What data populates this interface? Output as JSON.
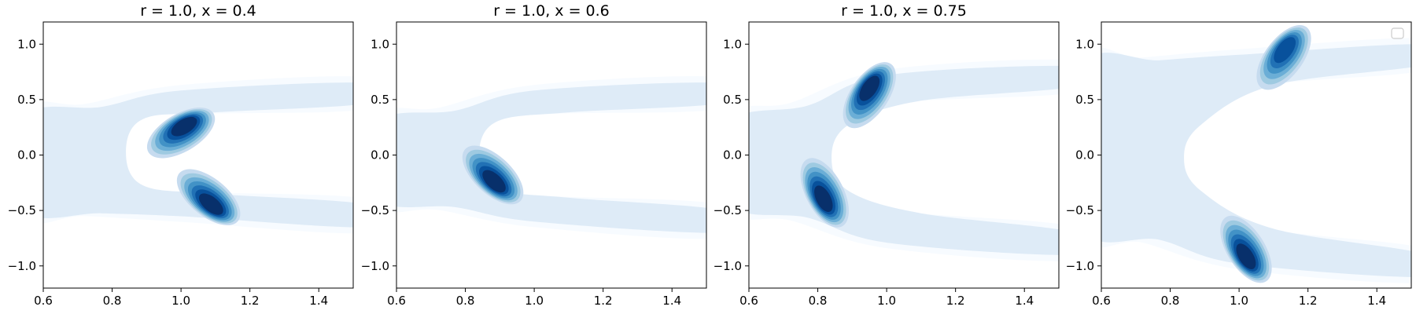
{
  "figure": {
    "type": "grid of filled density contour plots",
    "colormap": "Blues",
    "colormap_stops": [
      "#f7fbff",
      "#deebf7",
      "#c6dbef",
      "#9ecae1",
      "#6baed6",
      "#4292c6",
      "#2171b5",
      "#08519c",
      "#08306b"
    ],
    "background": "#ffffff",
    "axes_color": "#000000"
  },
  "chart_data": [
    {
      "type": "heatmap",
      "subtype": "filled-kde-contour",
      "title": "r = 1.0, x = 0.4",
      "xlim": [
        0.6,
        1.5
      ],
      "ylim": [
        -1.2,
        1.2
      ],
      "xticks": [
        0.6,
        0.8,
        1.0,
        1.2,
        1.4
      ],
      "xtick_labels": [
        "0.6",
        "0.8",
        "1.0",
        "1.2",
        "1.4"
      ],
      "yticks": [
        -1.0,
        -0.5,
        0.0,
        0.5,
        1.0
      ],
      "ytick_labels": [
        "−1.0",
        "−0.5",
        "0.0",
        "0.5",
        "1.0"
      ],
      "grid": false,
      "legend": null,
      "shape": "C-shaped band open to the right",
      "background_band": {
        "y_range_at_left": [
          -0.55,
          0.4
        ],
        "upper_arm_y_at_right": 0.6,
        "lower_arm_y_at_right": -0.55
      },
      "density_peaks": [
        {
          "x": 1.0,
          "y": 0.2,
          "relative_density": 1.0
        },
        {
          "x": 1.08,
          "y": -0.38,
          "relative_density": 0.95
        }
      ]
    },
    {
      "type": "heatmap",
      "subtype": "filled-kde-contour",
      "title": "r = 1.0, x = 0.6",
      "xlim": [
        0.6,
        1.5
      ],
      "ylim": [
        -1.2,
        1.2
      ],
      "xticks": [
        0.6,
        0.8,
        1.0,
        1.2,
        1.4
      ],
      "xtick_labels": [
        "0.6",
        "0.8",
        "1.0",
        "1.2",
        "1.4"
      ],
      "yticks": [
        -1.0,
        -0.5,
        0.0,
        0.5,
        1.0
      ],
      "ytick_labels": [
        "−1.0",
        "−0.5",
        "0.0",
        "0.5",
        "1.0"
      ],
      "grid": false,
      "legend": null,
      "shape": "C-shaped band open to the right",
      "background_band": {
        "y_range_at_left": [
          -0.45,
          0.35
        ],
        "upper_arm_y_at_right": 0.6,
        "lower_arm_y_at_right": -0.6
      },
      "density_peaks": [
        {
          "x": 0.88,
          "y": -0.18,
          "relative_density": 1.0
        }
      ]
    },
    {
      "type": "heatmap",
      "subtype": "filled-kde-contour",
      "title": "r = 1.0, x = 0.75",
      "xlim": [
        0.6,
        1.5
      ],
      "ylim": [
        -1.2,
        1.2
      ],
      "xticks": [
        0.6,
        0.8,
        1.0,
        1.2,
        1.4
      ],
      "xtick_labels": [
        "0.6",
        "0.8",
        "1.0",
        "1.2",
        "1.4"
      ],
      "yticks": [
        -1.0,
        -0.5,
        0.0,
        0.5,
        1.0
      ],
      "ytick_labels": [
        "−1.0",
        "−0.5",
        "0.0",
        "0.5",
        "1.0"
      ],
      "grid": false,
      "legend": null,
      "shape": "C-shaped band open to the right",
      "background_band": {
        "y_range_at_left": [
          -0.5,
          0.35
        ],
        "upper_arm_y_at_right": 0.75,
        "lower_arm_y_at_right": -0.8
      },
      "density_peaks": [
        {
          "x": 0.95,
          "y": 0.54,
          "relative_density": 1.0
        },
        {
          "x": 0.82,
          "y": -0.34,
          "relative_density": 0.95
        }
      ]
    },
    {
      "type": "heatmap",
      "subtype": "filled-kde-contour",
      "title": "",
      "xlim": [
        0.6,
        1.5
      ],
      "ylim": [
        -1.2,
        1.2
      ],
      "xticks": [
        0.6,
        0.8,
        1.0,
        1.2,
        1.4
      ],
      "xtick_labels": [
        "0.6",
        "0.8",
        "1.0",
        "1.2",
        "1.4"
      ],
      "yticks": [
        -1.0,
        -0.5,
        0.0,
        0.5,
        1.0
      ],
      "ytick_labels": [
        "−1.0",
        "−0.5",
        "0.0",
        "0.5",
        "1.0"
      ],
      "grid": false,
      "legend": {
        "placement": "top-right",
        "entries": []
      },
      "shape": "C-shaped band open to the right",
      "background_band": {
        "y_range_at_left": [
          -0.7,
          0.85
        ],
        "upper_arm_y_at_right": 0.95,
        "lower_arm_y_at_right": -1.0
      },
      "density_peaks": [
        {
          "x": 1.13,
          "y": 0.88,
          "relative_density": 0.9
        },
        {
          "x": 1.02,
          "y": -0.85,
          "relative_density": 1.0
        }
      ]
    }
  ]
}
